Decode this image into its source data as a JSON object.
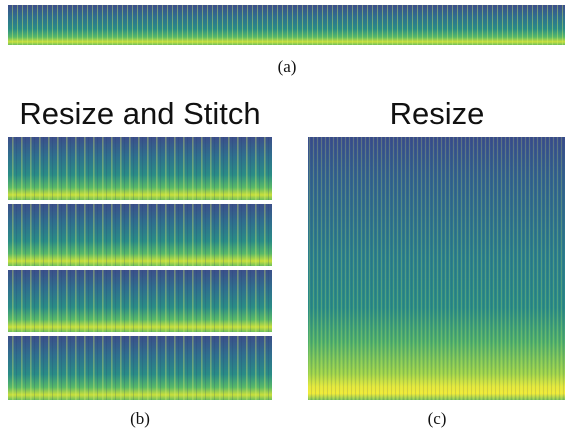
{
  "figure": {
    "label_a": "(a)",
    "panel_b_title": "Resize and Stitch",
    "panel_c_title": "Resize",
    "label_b": "(b)",
    "label_c": "(c)"
  }
}
